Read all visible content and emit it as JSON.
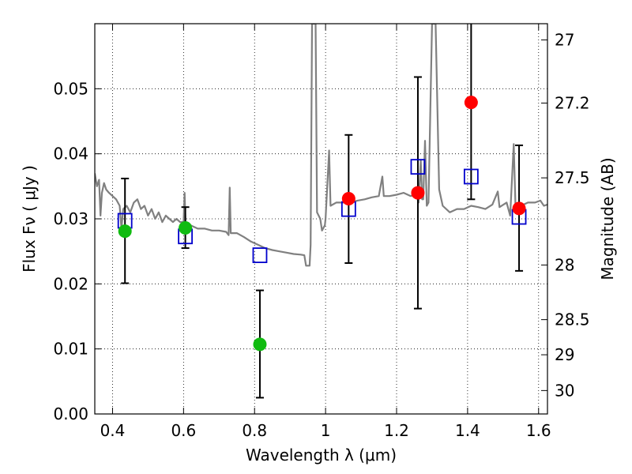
{
  "chart_data": {
    "type": "scatter",
    "xlabel": "Wavelength  λ (μm)",
    "ylabel": "Flux  Fν  ( μJy )",
    "y2label": "Magnitude (AB)",
    "xlim": [
      0.35,
      1.625
    ],
    "ylim": [
      0.0,
      0.06
    ],
    "x_ticks": [
      "0.4",
      "0.6",
      "0.8",
      "1",
      "1.2",
      "1.4",
      "1.6"
    ],
    "y_ticks": [
      "0.00",
      "0.01",
      "0.02",
      "0.03",
      "0.04",
      "0.05"
    ],
    "y2_ticks": [
      {
        "label": "27",
        "flux": 0.0575
      },
      {
        "label": "27.2",
        "flux": 0.0478
      },
      {
        "label": "27.5",
        "flux": 0.0363
      },
      {
        "label": "28",
        "flux": 0.0229
      },
      {
        "label": "28.5",
        "flux": 0.0145
      },
      {
        "label": "29",
        "flux": 0.0091
      },
      {
        "label": "30",
        "flux": 0.0036
      }
    ],
    "grid": true,
    "grid_style": "dotted",
    "colors": {
      "template": "#808080",
      "green": "#11bb11",
      "red": "#ff0000",
      "squares": "#0000cc",
      "errorbars": "#000000"
    },
    "series": [
      {
        "marker": "line",
        "color": "#808080",
        "points": [
          [
            0.35,
            0.037
          ],
          [
            0.356,
            0.035
          ],
          [
            0.362,
            0.036
          ],
          [
            0.366,
            0.0305
          ],
          [
            0.37,
            0.034
          ],
          [
            0.376,
            0.0355
          ],
          [
            0.382,
            0.0345
          ],
          [
            0.39,
            0.034
          ],
          [
            0.4,
            0.0335
          ],
          [
            0.41,
            0.033
          ],
          [
            0.42,
            0.032
          ],
          [
            0.425,
            0.0285
          ],
          [
            0.43,
            0.0315
          ],
          [
            0.44,
            0.032
          ],
          [
            0.45,
            0.031
          ],
          [
            0.46,
            0.0325
          ],
          [
            0.47,
            0.033
          ],
          [
            0.48,
            0.0315
          ],
          [
            0.49,
            0.032
          ],
          [
            0.5,
            0.0305
          ],
          [
            0.51,
            0.0315
          ],
          [
            0.52,
            0.03
          ],
          [
            0.53,
            0.031
          ],
          [
            0.54,
            0.0295
          ],
          [
            0.55,
            0.0305
          ],
          [
            0.56,
            0.03
          ],
          [
            0.57,
            0.0295
          ],
          [
            0.58,
            0.03
          ],
          [
            0.59,
            0.0295
          ],
          [
            0.6,
            0.0295
          ],
          [
            0.603,
            0.034
          ],
          [
            0.606,
            0.0285
          ],
          [
            0.62,
            0.029
          ],
          [
            0.64,
            0.0285
          ],
          [
            0.66,
            0.0285
          ],
          [
            0.68,
            0.0282
          ],
          [
            0.7,
            0.0282
          ],
          [
            0.72,
            0.028
          ],
          [
            0.727,
            0.0275
          ],
          [
            0.73,
            0.0348
          ],
          [
            0.733,
            0.0278
          ],
          [
            0.75,
            0.0278
          ],
          [
            0.77,
            0.0272
          ],
          [
            0.79,
            0.0265
          ],
          [
            0.81,
            0.026
          ],
          [
            0.83,
            0.0255
          ],
          [
            0.85,
            0.0252
          ],
          [
            0.87,
            0.025
          ],
          [
            0.89,
            0.0248
          ],
          [
            0.91,
            0.0246
          ],
          [
            0.93,
            0.0245
          ],
          [
            0.94,
            0.0244
          ],
          [
            0.945,
            0.0228
          ],
          [
            0.955,
            0.0228
          ],
          [
            0.958,
            0.026
          ],
          [
            0.962,
            0.06
          ],
          [
            0.972,
            0.06
          ],
          [
            0.976,
            0.031
          ],
          [
            0.985,
            0.03
          ],
          [
            0.99,
            0.0282
          ],
          [
            0.998,
            0.029
          ],
          [
            1.0,
            0.03
          ],
          [
            1.01,
            0.0405
          ],
          [
            1.014,
            0.032
          ],
          [
            1.03,
            0.0325
          ],
          [
            1.05,
            0.0325
          ],
          [
            1.07,
            0.0325
          ],
          [
            1.09,
            0.0328
          ],
          [
            1.11,
            0.033
          ],
          [
            1.13,
            0.0333
          ],
          [
            1.15,
            0.0335
          ],
          [
            1.16,
            0.0365
          ],
          [
            1.164,
            0.0335
          ],
          [
            1.18,
            0.0335
          ],
          [
            1.2,
            0.0337
          ],
          [
            1.22,
            0.034
          ],
          [
            1.24,
            0.0335
          ],
          [
            1.255,
            0.0338
          ],
          [
            1.262,
            0.0325
          ],
          [
            1.268,
            0.039
          ],
          [
            1.272,
            0.033
          ],
          [
            1.275,
            0.033
          ],
          [
            1.28,
            0.042
          ],
          [
            1.285,
            0.032
          ],
          [
            1.29,
            0.0325
          ],
          [
            1.3,
            0.06
          ],
          [
            1.31,
            0.06
          ],
          [
            1.32,
            0.0345
          ],
          [
            1.33,
            0.032
          ],
          [
            1.35,
            0.031
          ],
          [
            1.37,
            0.0315
          ],
          [
            1.39,
            0.0315
          ],
          [
            1.41,
            0.032
          ],
          [
            1.43,
            0.0318
          ],
          [
            1.45,
            0.0315
          ],
          [
            1.47,
            0.0322
          ],
          [
            1.485,
            0.0342
          ],
          [
            1.49,
            0.0318
          ],
          [
            1.51,
            0.0325
          ],
          [
            1.52,
            0.0305
          ],
          [
            1.53,
            0.0415
          ],
          [
            1.535,
            0.0315
          ],
          [
            1.55,
            0.032
          ],
          [
            1.57,
            0.0325
          ],
          [
            1.59,
            0.0325
          ],
          [
            1.605,
            0.0328
          ],
          [
            1.615,
            0.032
          ],
          [
            1.625,
            0.0322
          ]
        ]
      },
      {
        "marker": "circle",
        "color": "#11bb11",
        "points": [
          {
            "x": 0.435,
            "y": 0.0281,
            "ylo": 0.0201,
            "yhi": 0.0362
          },
          {
            "x": 0.605,
            "y": 0.0286,
            "ylo": 0.0255,
            "yhi": 0.0318
          },
          {
            "x": 0.815,
            "y": 0.0107,
            "ylo": 0.0025,
            "yhi": 0.019
          }
        ]
      },
      {
        "marker": "circle",
        "color": "#ff0000",
        "points": [
          {
            "x": 1.065,
            "y": 0.0331,
            "ylo": 0.0232,
            "yhi": 0.0429
          },
          {
            "x": 1.26,
            "y": 0.034,
            "ylo": 0.0162,
            "yhi": 0.0518
          },
          {
            "x": 1.41,
            "y": 0.0479,
            "ylo": 0.033,
            "yhi": 0.06
          },
          {
            "x": 1.545,
            "y": 0.0316,
            "ylo": 0.022,
            "yhi": 0.0413
          }
        ]
      },
      {
        "marker": "square-open",
        "color": "#0000cc",
        "points": [
          {
            "x": 0.435,
            "y": 0.0297
          },
          {
            "x": 0.605,
            "y": 0.0273
          },
          {
            "x": 0.815,
            "y": 0.0244
          },
          {
            "x": 1.065,
            "y": 0.0315
          },
          {
            "x": 1.26,
            "y": 0.038
          },
          {
            "x": 1.41,
            "y": 0.0365
          },
          {
            "x": 1.545,
            "y": 0.0303
          }
        ]
      }
    ]
  }
}
